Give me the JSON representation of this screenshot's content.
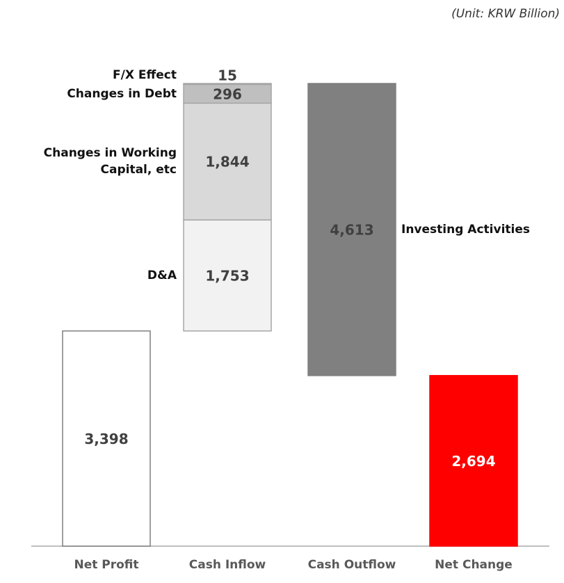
{
  "chart_data": {
    "type": "waterfall",
    "unit_note": "(Unit: KRW Billion)",
    "categories": [
      "Net Profit",
      "Cash Inflow",
      "Cash Outflow",
      "Net Change"
    ],
    "bars": [
      {
        "kind": "total",
        "values": [
          3398
        ],
        "value_labels": [
          "3,398"
        ],
        "colors": [
          "#ffffff"
        ],
        "label_color": "#404040",
        "border": "#7f7f7f"
      },
      {
        "kind": "increase",
        "names": [
          "D&A",
          "Changes in Working Capital, etc",
          "Changes in Debt",
          "F/X Effect"
        ],
        "values": [
          1753,
          1844,
          296,
          15
        ],
        "value_labels": [
          "1,753",
          "1,844",
          "296",
          "15"
        ],
        "colors": [
          "#f2f2f2",
          "#d9d9d9",
          "#bfbfbf",
          "#7f7f7f"
        ],
        "label_color": "#404040",
        "border": "#a6a6a6"
      },
      {
        "kind": "decrease",
        "names": [
          "Investing Activities"
        ],
        "values": [
          4613
        ],
        "value_labels": [
          "4,613"
        ],
        "colors": [
          "#808080"
        ],
        "label_color": "#404040",
        "border": "#808080"
      },
      {
        "kind": "total",
        "values": [
          2694
        ],
        "value_labels": [
          "2,694"
        ],
        "colors": [
          "#ff0000"
        ],
        "label_color": "#ffffff",
        "border": "#ff0000"
      }
    ]
  }
}
